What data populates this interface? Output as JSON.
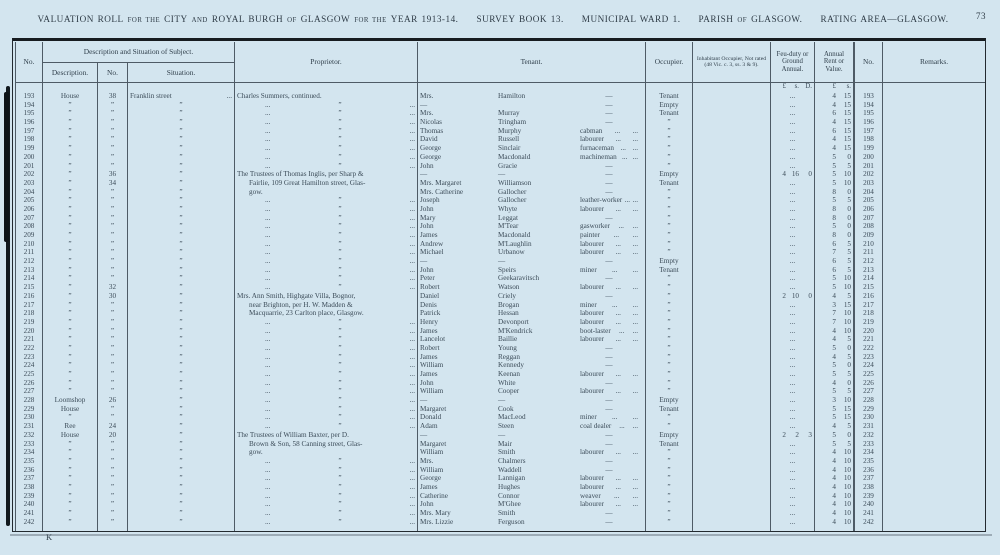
{
  "header": {
    "title_segments": [
      {
        "t": "VALUATION ROLL",
        "k": "lg"
      },
      {
        "t": "FOR THE",
        "k": "sm"
      },
      {
        "t": "CITY",
        "k": "lg"
      },
      {
        "t": "AND",
        "k": "sm"
      },
      {
        "t": "ROYAL BURGH",
        "k": "lg"
      },
      {
        "t": "OF",
        "k": "sm"
      },
      {
        "t": "GLASGOW",
        "k": "lg"
      },
      {
        "t": "FOR THE",
        "k": "sm"
      },
      {
        "t": "YEAR 1913-14.",
        "k": "lg"
      },
      {
        "t": "SURVEY BOOK 13.",
        "k": "lg",
        "g": true
      },
      {
        "t": "MUNICIPAL WARD 1.",
        "k": "lg",
        "g": true
      },
      {
        "t": "PARISH",
        "k": "lg",
        "g": true
      },
      {
        "t": "OF",
        "k": "sm"
      },
      {
        "t": "GLASGOW.",
        "k": "lg"
      },
      {
        "t": "RATING AREA—GLASGOW.",
        "k": "lg",
        "g": true
      }
    ],
    "page_number": "73"
  },
  "footer": {
    "signature": "K"
  },
  "table": {
    "columns": {
      "no": "No.",
      "group_desc": "Description and Situation of Subject.",
      "description": "Description.",
      "stno": "No.",
      "situation": "Situation.",
      "proprietor": "Proprietor.",
      "tenant": "Tenant.",
      "occupier": "Occupier.",
      "inhabitant": "Inhabitant Occupier, Not rated (48 Vic. c. 3, ss. 3 & 9).",
      "feu": "Feu-duty or Ground Annual.",
      "rent": "Annual Rent or Value.",
      "no2": "No.",
      "remarks": "Remarks."
    },
    "currency": {
      "feu": [
        "£",
        "s.",
        "D."
      ],
      "rent": [
        "£",
        "s."
      ]
    },
    "marks": {
      "ditto": "”",
      "dots": "...",
      "dash": "—"
    },
    "rows": [
      {
        "n": "193",
        "d": "House",
        "s": "38",
        "si": "Franklin street",
        "pt": "t",
        "p": "Charles Summers, continued.",
        "tf": "Mrs.",
        "tl": "Hamilton",
        "to": "—",
        "oc": "Tenant",
        "f": null,
        "r": [
          "4",
          "15"
        ]
      },
      {
        "n": "194",
        "d": "”",
        "s": "”",
        "si": "”",
        "pt": "d",
        "p": "",
        "tf": "—",
        "tl": "",
        "to": "—",
        "oc": "Empty",
        "f": null,
        "r": [
          "4",
          "15"
        ]
      },
      {
        "n": "195",
        "d": "”",
        "s": "”",
        "si": "”",
        "pt": "d",
        "p": "",
        "tf": "Mrs.",
        "tl": "Murray",
        "to": "—",
        "oc": "Tenant",
        "f": null,
        "r": [
          "6",
          "15"
        ]
      },
      {
        "n": "196",
        "d": "”",
        "s": "”",
        "si": "”",
        "pt": "d",
        "p": "",
        "tf": "Nicolas",
        "tl": "Tringham",
        "to": "—",
        "oc": "”",
        "f": null,
        "r": [
          "4",
          "15"
        ]
      },
      {
        "n": "197",
        "d": "”",
        "s": "”",
        "si": "”",
        "pt": "d",
        "p": "",
        "tf": "Thomas",
        "tl": "Murphy",
        "to": "cabman",
        "oc": "”",
        "f": null,
        "r": [
          "6",
          "15"
        ]
      },
      {
        "n": "198",
        "d": "”",
        "s": "”",
        "si": "”",
        "pt": "d",
        "p": "",
        "tf": "David",
        "tl": "Russell",
        "to": "labourer",
        "oc": "”",
        "f": null,
        "r": [
          "4",
          "15"
        ]
      },
      {
        "n": "199",
        "d": "”",
        "s": "”",
        "si": "”",
        "pt": "d",
        "p": "",
        "tf": "George",
        "tl": "Sinclair",
        "to": "furnaceman",
        "oc": "”",
        "f": null,
        "r": [
          "4",
          "15"
        ]
      },
      {
        "n": "200",
        "d": "”",
        "s": "”",
        "si": "”",
        "pt": "d",
        "p": "",
        "tf": "George",
        "tl": "Macdonald",
        "to": "machineman",
        "oc": "”",
        "f": null,
        "r": [
          "5",
          "0"
        ]
      },
      {
        "n": "201",
        "d": "”",
        "s": "”",
        "si": "”",
        "pt": "d",
        "p": "",
        "tf": "John",
        "tl": "Gracie",
        "to": "—",
        "oc": "”",
        "f": null,
        "r": [
          "5",
          "5"
        ]
      },
      {
        "n": "202",
        "d": "”",
        "s": "36",
        "si": "”",
        "pt": "t",
        "p": "The Trustees of Thomas Inglis, per Sharp &",
        "tf": "—",
        "tl": "—",
        "to": "—",
        "oc": "Empty",
        "f": [
          "4",
          "16",
          "0"
        ],
        "r": [
          "5",
          "10"
        ]
      },
      {
        "n": "203",
        "d": "”",
        "s": "34",
        "si": "”",
        "pt": "c",
        "p": "Fairlie, 109 Great Hamilton street, Glas-",
        "tf": "Mrs. Margaret",
        "tl": "Williamson",
        "to": "—",
        "oc": "Tenant",
        "f": null,
        "r": [
          "5",
          "10"
        ]
      },
      {
        "n": "204",
        "d": "”",
        "s": "”",
        "si": "”",
        "pt": "c",
        "p": "gow.",
        "tf": "Mrs. Catherine",
        "tl": "Gallocher",
        "to": "—",
        "oc": "”",
        "f": null,
        "r": [
          "8",
          "0"
        ]
      },
      {
        "n": "205",
        "d": "”",
        "s": "”",
        "si": "”",
        "pt": "d",
        "p": "",
        "tf": "Joseph",
        "tl": "Gallocher",
        "to": "leather-worker",
        "oc": "”",
        "f": null,
        "r": [
          "5",
          "5"
        ]
      },
      {
        "n": "206",
        "d": "”",
        "s": "”",
        "si": "”",
        "pt": "d",
        "p": "",
        "tf": "John",
        "tl": "Whyte",
        "to": "labourer",
        "oc": "”",
        "f": null,
        "r": [
          "8",
          "0"
        ]
      },
      {
        "n": "207",
        "d": "”",
        "s": "”",
        "si": "”",
        "pt": "d",
        "p": "",
        "tf": "Mary",
        "tl": "Leggat",
        "to": "—",
        "oc": "”",
        "f": null,
        "r": [
          "8",
          "0"
        ]
      },
      {
        "n": "208",
        "d": "”",
        "s": "”",
        "si": "”",
        "pt": "d",
        "p": "",
        "tf": "John",
        "tl": "M'Tear",
        "to": "gasworker",
        "oc": "”",
        "f": null,
        "r": [
          "5",
          "0"
        ]
      },
      {
        "n": "209",
        "d": "”",
        "s": "”",
        "si": "”",
        "pt": "d",
        "p": "",
        "tf": "James",
        "tl": "Macdonald",
        "to": "painter",
        "oc": "”",
        "f": null,
        "r": [
          "8",
          "0"
        ]
      },
      {
        "n": "210",
        "d": "”",
        "s": "”",
        "si": "”",
        "pt": "d",
        "p": "",
        "tf": "Andrew",
        "tl": "M'Laughlin",
        "to": "labourer",
        "oc": "”",
        "f": null,
        "r": [
          "6",
          "5"
        ]
      },
      {
        "n": "211",
        "d": "”",
        "s": "”",
        "si": "”",
        "pt": "d",
        "p": "",
        "tf": "Michael",
        "tl": "Urbanow",
        "to": "labourer",
        "oc": "”",
        "f": null,
        "r": [
          "7",
          "5"
        ]
      },
      {
        "n": "212",
        "d": "”",
        "s": "”",
        "si": "”",
        "pt": "d",
        "p": "",
        "tf": "—",
        "tl": "—",
        "to": "—",
        "oc": "Empty",
        "f": null,
        "r": [
          "6",
          "5"
        ]
      },
      {
        "n": "213",
        "d": "”",
        "s": "”",
        "si": "”",
        "pt": "d",
        "p": "",
        "tf": "John",
        "tl": "Speirs",
        "to": "miner",
        "oc": "Tenant",
        "f": null,
        "r": [
          "6",
          "5"
        ]
      },
      {
        "n": "214",
        "d": "”",
        "s": "”",
        "si": "”",
        "pt": "d",
        "p": "",
        "tf": "Peter",
        "tl": "Geekaravitsch",
        "to": "—",
        "oc": "”",
        "f": null,
        "r": [
          "5",
          "10"
        ]
      },
      {
        "n": "215",
        "d": "”",
        "s": "32",
        "si": "”",
        "pt": "d",
        "p": "",
        "tf": "Robert",
        "tl": "Watson",
        "to": "labourer",
        "oc": "”",
        "f": null,
        "r": [
          "5",
          "10"
        ]
      },
      {
        "n": "216",
        "d": "”",
        "s": "30",
        "si": "”",
        "pt": "t",
        "p": "Mrs. Ann Smith, Highgate Villa, Bognor,",
        "tf": "Daniel",
        "tl": "Criely",
        "to": "—",
        "oc": "”",
        "f": [
          "2",
          "10",
          "0"
        ],
        "r": [
          "4",
          "5"
        ]
      },
      {
        "n": "217",
        "d": "”",
        "s": "”",
        "si": "”",
        "pt": "c",
        "p": "near Brighton, per H. W. Madden &",
        "tf": "Denis",
        "tl": "Brogan",
        "to": "miner",
        "oc": "”",
        "f": null,
        "r": [
          "3",
          "15"
        ]
      },
      {
        "n": "218",
        "d": "”",
        "s": "”",
        "si": "”",
        "pt": "c",
        "p": "Macquarrie, 23 Carlton place, Glasgow.",
        "tf": "Patrick",
        "tl": "Hessan",
        "to": "labourer",
        "oc": "”",
        "f": null,
        "r": [
          "7",
          "10"
        ]
      },
      {
        "n": "219",
        "d": "”",
        "s": "”",
        "si": "”",
        "pt": "d",
        "p": "",
        "tf": "Henry",
        "tl": "Devonport",
        "to": "labourer",
        "oc": "”",
        "f": null,
        "r": [
          "7",
          "10"
        ]
      },
      {
        "n": "220",
        "d": "”",
        "s": "”",
        "si": "”",
        "pt": "d",
        "p": "",
        "tf": "James",
        "tl": "M'Kendrick",
        "to": "boot-laster",
        "oc": "”",
        "f": null,
        "r": [
          "4",
          "10"
        ]
      },
      {
        "n": "221",
        "d": "”",
        "s": "”",
        "si": "”",
        "pt": "d",
        "p": "",
        "tf": "Lancelot",
        "tl": "Baillie",
        "to": "labourer",
        "oc": "”",
        "f": null,
        "r": [
          "4",
          "5"
        ]
      },
      {
        "n": "222",
        "d": "”",
        "s": "”",
        "si": "”",
        "pt": "d",
        "p": "",
        "tf": "Robert",
        "tl": "Young",
        "to": "—",
        "oc": "”",
        "f": null,
        "r": [
          "5",
          "0"
        ]
      },
      {
        "n": "223",
        "d": "”",
        "s": "”",
        "si": "”",
        "pt": "d",
        "p": "",
        "tf": "James",
        "tl": "Reggan",
        "to": "—",
        "oc": "”",
        "f": null,
        "r": [
          "4",
          "5"
        ]
      },
      {
        "n": "224",
        "d": "”",
        "s": "”",
        "si": "”",
        "pt": "d",
        "p": "",
        "tf": "William",
        "tl": "Kennedy",
        "to": "—",
        "oc": "”",
        "f": null,
        "r": [
          "5",
          "0"
        ]
      },
      {
        "n": "225",
        "d": "”",
        "s": "”",
        "si": "”",
        "pt": "d",
        "p": "",
        "tf": "James",
        "tl": "Keenan",
        "to": "labourer",
        "oc": "”",
        "f": null,
        "r": [
          "5",
          "5"
        ]
      },
      {
        "n": "226",
        "d": "”",
        "s": "”",
        "si": "”",
        "pt": "d",
        "p": "",
        "tf": "John",
        "tl": "White",
        "to": "—",
        "oc": "”",
        "f": null,
        "r": [
          "4",
          "0"
        ]
      },
      {
        "n": "227",
        "d": "”",
        "s": "”",
        "si": "”",
        "pt": "d",
        "p": "",
        "tf": "William",
        "tl": "Cooper",
        "to": "labourer",
        "oc": "”",
        "f": null,
        "r": [
          "5",
          "5"
        ]
      },
      {
        "n": "228",
        "d": "Loomshop",
        "s": "26",
        "si": "”",
        "pt": "d",
        "p": "",
        "tf": "—",
        "tl": "—",
        "to": "—",
        "oc": "Empty",
        "f": null,
        "r": [
          "3",
          "10"
        ]
      },
      {
        "n": "229",
        "d": "House",
        "s": "”",
        "si": "”",
        "pt": "d",
        "p": "",
        "tf": "Margaret",
        "tl": "Cook",
        "to": "—",
        "oc": "Tenant",
        "f": null,
        "r": [
          "5",
          "15"
        ]
      },
      {
        "n": "230",
        "d": "”",
        "s": "”",
        "si": "”",
        "pt": "d",
        "p": "",
        "tf": "Donald",
        "tl": "MacLeod",
        "to": "miner",
        "oc": "”",
        "f": null,
        "r": [
          "5",
          "15"
        ]
      },
      {
        "n": "231",
        "d": "Ree",
        "s": "24",
        "si": "”",
        "pt": "d",
        "p": "",
        "tf": "Adam",
        "tl": "Steen",
        "to": "coal dealer",
        "oc": "”",
        "f": null,
        "r": [
          "4",
          "5"
        ]
      },
      {
        "n": "232",
        "d": "House",
        "s": "20",
        "si": "”",
        "pt": "t",
        "p": "The Trustees of William Baxter, per D.",
        "tf": "—",
        "tl": "—",
        "to": "—",
        "oc": "Empty",
        "f": [
          "2",
          "2",
          "3"
        ],
        "r": [
          "5",
          "0"
        ]
      },
      {
        "n": "233",
        "d": "”",
        "s": "”",
        "si": "”",
        "pt": "c",
        "p": "Brown & Son, 58 Canning street, Glas-",
        "tf": "Margaret",
        "tl": "Mair",
        "to": "—",
        "oc": "Tenant",
        "f": null,
        "r": [
          "5",
          "5"
        ]
      },
      {
        "n": "234",
        "d": "”",
        "s": "”",
        "si": "”",
        "pt": "c",
        "p": "gow.",
        "tf": "William",
        "tl": "Smith",
        "to": "labourer",
        "oc": "”",
        "f": null,
        "r": [
          "4",
          "10"
        ]
      },
      {
        "n": "235",
        "d": "”",
        "s": "”",
        "si": "”",
        "pt": "d",
        "p": "",
        "tf": "Mrs.",
        "tl": "Chalmers",
        "to": "—",
        "oc": "”",
        "f": null,
        "r": [
          "4",
          "10"
        ]
      },
      {
        "n": "236",
        "d": "”",
        "s": "”",
        "si": "”",
        "pt": "d",
        "p": "",
        "tf": "William",
        "tl": "Waddell",
        "to": "—",
        "oc": "”",
        "f": null,
        "r": [
          "4",
          "10"
        ]
      },
      {
        "n": "237",
        "d": "”",
        "s": "”",
        "si": "”",
        "pt": "d",
        "p": "",
        "tf": "George",
        "tl": "Lannigan",
        "to": "labourer",
        "oc": "”",
        "f": null,
        "r": [
          "4",
          "10"
        ]
      },
      {
        "n": "238",
        "d": "”",
        "s": "”",
        "si": "”",
        "pt": "d",
        "p": "",
        "tf": "James",
        "tl": "Hughes",
        "to": "labourer",
        "oc": "”",
        "f": null,
        "r": [
          "4",
          "10"
        ]
      },
      {
        "n": "239",
        "d": "”",
        "s": "”",
        "si": "”",
        "pt": "d",
        "p": "",
        "tf": "Catherine",
        "tl": "Connor",
        "to": "weaver",
        "oc": "”",
        "f": null,
        "r": [
          "4",
          "10"
        ]
      },
      {
        "n": "240",
        "d": "”",
        "s": "”",
        "si": "”",
        "pt": "d",
        "p": "",
        "tf": "John",
        "tl": "M'Ghee",
        "to": "labourer",
        "oc": "”",
        "f": null,
        "r": [
          "4",
          "10"
        ]
      },
      {
        "n": "241",
        "d": "”",
        "s": "”",
        "si": "”",
        "pt": "d",
        "p": "",
        "tf": "Mrs. Mary",
        "tl": "Smith",
        "to": "—",
        "oc": "”",
        "f": null,
        "r": [
          "4",
          "10"
        ]
      },
      {
        "n": "242",
        "d": "”",
        "s": "”",
        "si": "”",
        "pt": "d",
        "p": "",
        "tf": "Mrs. Lizzie",
        "tl": "Ferguson",
        "to": "—",
        "oc": "”",
        "f": null,
        "r": [
          "4",
          "10"
        ]
      }
    ]
  }
}
